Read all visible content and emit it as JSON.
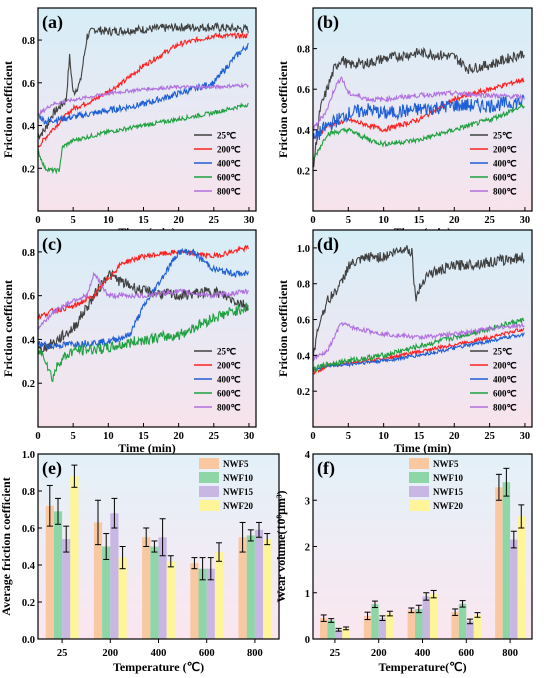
{
  "chart_data": [
    {
      "panel_label": "(a)",
      "type": "line",
      "xlabel": "Time (min)",
      "ylabel": "Friction coefficient",
      "xlim": [
        0,
        31
      ],
      "ylim": [
        0.0,
        0.95
      ],
      "xticks": [
        "0",
        "5",
        "10",
        "15",
        "20",
        "25",
        "30"
      ],
      "yticks": [
        "0.2",
        "0.4",
        "0.6",
        "0.8"
      ],
      "legend_position": "bottom-right",
      "series": [
        {
          "name": "25℃",
          "color": "#404040",
          "noise": 0.02,
          "x": [
            0,
            1,
            2,
            4,
            4.5,
            5,
            6,
            7,
            8,
            10,
            15,
            20,
            25,
            30
          ],
          "y": [
            0.35,
            0.38,
            0.45,
            0.52,
            0.72,
            0.55,
            0.6,
            0.82,
            0.85,
            0.84,
            0.85,
            0.86,
            0.86,
            0.85
          ]
        },
        {
          "name": "200℃",
          "color": "#ff2020",
          "noise": 0.012,
          "x": [
            0,
            2,
            5,
            8,
            12,
            15,
            18,
            20,
            25,
            30
          ],
          "y": [
            0.3,
            0.38,
            0.48,
            0.52,
            0.6,
            0.68,
            0.74,
            0.78,
            0.82,
            0.82
          ]
        },
        {
          "name": "400℃",
          "color": "#1f5fd6",
          "noise": 0.015,
          "x": [
            0,
            1,
            5,
            10,
            15,
            20,
            25,
            28,
            30
          ],
          "y": [
            0.45,
            0.42,
            0.44,
            0.47,
            0.5,
            0.55,
            0.6,
            0.72,
            0.78
          ]
        },
        {
          "name": "600℃",
          "color": "#20a040",
          "noise": 0.01,
          "x": [
            0,
            1,
            2,
            3,
            3.5,
            5,
            10,
            15,
            20,
            25,
            30
          ],
          "y": [
            0.28,
            0.2,
            0.19,
            0.19,
            0.3,
            0.33,
            0.37,
            0.4,
            0.43,
            0.46,
            0.5
          ]
        },
        {
          "name": "800℃",
          "color": "#b070e0",
          "noise": 0.008,
          "x": [
            0,
            2,
            5,
            10,
            15,
            20,
            25,
            30
          ],
          "y": [
            0.45,
            0.5,
            0.52,
            0.55,
            0.57,
            0.58,
            0.58,
            0.59
          ]
        }
      ]
    },
    {
      "panel_label": "(b)",
      "type": "line",
      "xlabel": "Time (min)",
      "ylabel": "Friction coefficient",
      "xlim": [
        0,
        31
      ],
      "ylim": [
        0.0,
        1.0
      ],
      "xticks": [
        "0",
        "5",
        "10",
        "15",
        "20",
        "25",
        "30"
      ],
      "yticks": [
        "0.2",
        "0.4",
        "0.6",
        "0.8"
      ],
      "legend_position": "bottom-right",
      "series": [
        {
          "name": "25℃",
          "color": "#404040",
          "noise": 0.025,
          "x": [
            0,
            1,
            2,
            3,
            4,
            5,
            8,
            10,
            15,
            20,
            22,
            25,
            30
          ],
          "y": [
            0.2,
            0.5,
            0.6,
            0.7,
            0.75,
            0.72,
            0.73,
            0.75,
            0.78,
            0.76,
            0.7,
            0.72,
            0.78
          ]
        },
        {
          "name": "200℃",
          "color": "#ff2020",
          "noise": 0.012,
          "x": [
            0,
            2,
            5,
            8,
            10,
            15,
            20,
            25,
            30
          ],
          "y": [
            0.35,
            0.42,
            0.45,
            0.42,
            0.4,
            0.45,
            0.55,
            0.6,
            0.65
          ]
        },
        {
          "name": "400℃",
          "color": "#1f5fd6",
          "noise": 0.035,
          "x": [
            0,
            2,
            5,
            8,
            10,
            15,
            20,
            25,
            30
          ],
          "y": [
            0.35,
            0.42,
            0.48,
            0.5,
            0.48,
            0.5,
            0.52,
            0.52,
            0.54
          ]
        },
        {
          "name": "600℃",
          "color": "#20a040",
          "noise": 0.012,
          "x": [
            0,
            2,
            5,
            8,
            10,
            15,
            20,
            25,
            30
          ],
          "y": [
            0.25,
            0.38,
            0.4,
            0.35,
            0.33,
            0.35,
            0.4,
            0.45,
            0.52
          ]
        },
        {
          "name": "800℃",
          "color": "#b070e0",
          "noise": 0.012,
          "x": [
            0,
            2,
            3,
            4,
            5,
            8,
            10,
            15,
            20,
            25,
            30
          ],
          "y": [
            0.4,
            0.5,
            0.6,
            0.66,
            0.58,
            0.55,
            0.55,
            0.57,
            0.58,
            0.57,
            0.56
          ]
        }
      ]
    },
    {
      "panel_label": "(c)",
      "type": "line",
      "xlabel": "Time (min)",
      "ylabel": "Friction coefficient",
      "xlim": [
        0,
        31
      ],
      "ylim": [
        0.0,
        0.9
      ],
      "xticks": [
        "0",
        "5",
        "10",
        "15",
        "20",
        "25",
        "30"
      ],
      "yticks": [
        "0.2",
        "0.4",
        "0.6",
        "0.8"
      ],
      "legend_position": "bottom-right",
      "series": [
        {
          "name": "25℃",
          "color": "#404040",
          "noise": 0.025,
          "x": [
            0,
            2,
            5,
            8,
            10,
            12,
            15,
            20,
            25,
            30
          ],
          "y": [
            0.35,
            0.38,
            0.45,
            0.6,
            0.7,
            0.66,
            0.62,
            0.6,
            0.62,
            0.55
          ]
        },
        {
          "name": "200℃",
          "color": "#ff2020",
          "noise": 0.012,
          "x": [
            0,
            2,
            5,
            8,
            10,
            12,
            15,
            20,
            25,
            30
          ],
          "y": [
            0.5,
            0.53,
            0.55,
            0.6,
            0.68,
            0.75,
            0.78,
            0.8,
            0.78,
            0.82
          ]
        },
        {
          "name": "400℃",
          "color": "#1f5fd6",
          "noise": 0.015,
          "x": [
            0,
            2,
            5,
            10,
            13,
            15,
            18,
            20,
            22,
            25,
            28,
            30
          ],
          "y": [
            0.38,
            0.37,
            0.38,
            0.39,
            0.42,
            0.55,
            0.7,
            0.8,
            0.8,
            0.72,
            0.7,
            0.7
          ]
        },
        {
          "name": "600℃",
          "color": "#20a040",
          "noise": 0.025,
          "x": [
            0,
            1,
            2,
            3,
            5,
            10,
            15,
            20,
            25,
            30
          ],
          "y": [
            0.35,
            0.32,
            0.22,
            0.3,
            0.35,
            0.36,
            0.4,
            0.42,
            0.5,
            0.55
          ]
        },
        {
          "name": "800℃",
          "color": "#b070e0",
          "noise": 0.012,
          "x": [
            0,
            2,
            5,
            7,
            8,
            10,
            15,
            20,
            25,
            30
          ],
          "y": [
            0.45,
            0.52,
            0.58,
            0.6,
            0.7,
            0.6,
            0.6,
            0.62,
            0.6,
            0.62
          ]
        }
      ]
    },
    {
      "panel_label": "(d)",
      "type": "line",
      "xlabel": "Time (min)",
      "ylabel": "Friction coefficient",
      "xlim": [
        0,
        31
      ],
      "ylim": [
        0.0,
        1.1
      ],
      "xticks": [
        "0",
        "5",
        "10",
        "15",
        "20",
        "25",
        "30"
      ],
      "yticks": [
        "0.2",
        "0.4",
        "0.6",
        "0.8",
        "1.0"
      ],
      "legend_position": "bottom-right",
      "series": [
        {
          "name": "25℃",
          "color": "#404040",
          "noise": 0.03,
          "x": [
            0,
            1,
            2,
            4,
            5,
            8,
            10,
            13,
            14,
            14.5,
            16,
            20,
            25,
            30
          ],
          "y": [
            0.4,
            0.6,
            0.7,
            0.8,
            0.9,
            0.95,
            0.95,
            1.0,
            0.98,
            0.72,
            0.85,
            0.9,
            0.92,
            0.95
          ]
        },
        {
          "name": "200℃",
          "color": "#ff2020",
          "noise": 0.01,
          "x": [
            0,
            2,
            5,
            10,
            15,
            20,
            25,
            30
          ],
          "y": [
            0.3,
            0.34,
            0.36,
            0.38,
            0.42,
            0.46,
            0.5,
            0.55
          ]
        },
        {
          "name": "400℃",
          "color": "#1f5fd6",
          "noise": 0.01,
          "x": [
            0,
            2,
            5,
            10,
            15,
            20,
            25,
            30
          ],
          "y": [
            0.32,
            0.34,
            0.35,
            0.37,
            0.4,
            0.44,
            0.48,
            0.52
          ]
        },
        {
          "name": "600℃",
          "color": "#20a040",
          "noise": 0.015,
          "x": [
            0,
            2,
            5,
            10,
            15,
            20,
            25,
            30
          ],
          "y": [
            0.32,
            0.35,
            0.37,
            0.4,
            0.45,
            0.5,
            0.55,
            0.6
          ]
        },
        {
          "name": "800℃",
          "color": "#b070e0",
          "noise": 0.012,
          "x": [
            0,
            1,
            2,
            3,
            4,
            6,
            10,
            15,
            20,
            25,
            30
          ],
          "y": [
            0.38,
            0.4,
            0.42,
            0.5,
            0.58,
            0.55,
            0.52,
            0.5,
            0.52,
            0.55,
            0.57
          ]
        }
      ]
    },
    {
      "panel_label": "(e)",
      "type": "bar",
      "xlabel": "Temperature (℃)",
      "ylabel": "Average friction coefficient",
      "ylim": [
        0.0,
        1.0
      ],
      "yticks": [
        "0.0",
        "0.2",
        "0.4",
        "0.6",
        "0.8",
        "1.0"
      ],
      "categories": [
        "25",
        "200",
        "400",
        "600",
        "800"
      ],
      "legend_position": "top-right",
      "series": [
        {
          "name": "NWF5",
          "color": "#f9c8a0",
          "values": [
            0.72,
            0.63,
            0.55,
            0.41,
            0.55
          ],
          "errors": [
            0.11,
            0.12,
            0.05,
            0.03,
            0.08
          ]
        },
        {
          "name": "NWF10",
          "color": "#8fd6a6",
          "values": [
            0.69,
            0.5,
            0.5,
            0.38,
            0.56
          ],
          "errors": [
            0.07,
            0.07,
            0.03,
            0.06,
            0.03
          ]
        },
        {
          "name": "NWF15",
          "color": "#c7b7e2",
          "values": [
            0.54,
            0.68,
            0.55,
            0.38,
            0.59
          ],
          "errors": [
            0.07,
            0.08,
            0.1,
            0.06,
            0.04
          ]
        },
        {
          "name": "NWF20",
          "color": "#fdf598",
          "values": [
            0.88,
            0.44,
            0.42,
            0.47,
            0.54
          ],
          "errors": [
            0.06,
            0.06,
            0.03,
            0.05,
            0.03
          ]
        }
      ]
    },
    {
      "panel_label": "(f)",
      "type": "bar",
      "xlabel": "Temperature(℃)",
      "ylabel": "Wear volume(10⁸μm³)",
      "ylim": [
        0,
        4
      ],
      "yticks": [
        "0",
        "1",
        "2",
        "3",
        "4"
      ],
      "categories": [
        "25",
        "200",
        "400",
        "600",
        "800"
      ],
      "legend_position": "top-left",
      "series": [
        {
          "name": "NWF5",
          "color": "#f9c8a0",
          "values": [
            0.45,
            0.5,
            0.62,
            0.58,
            3.28
          ],
          "errors": [
            0.07,
            0.08,
            0.05,
            0.07,
            0.28
          ]
        },
        {
          "name": "NWF10",
          "color": "#8fd6a6",
          "values": [
            0.4,
            0.75,
            0.65,
            0.76,
            3.39
          ],
          "errors": [
            0.04,
            0.07,
            0.08,
            0.07,
            0.3
          ]
        },
        {
          "name": "NWF15",
          "color": "#c7b7e2",
          "values": [
            0.2,
            0.45,
            0.92,
            0.38,
            2.15
          ],
          "errors": [
            0.03,
            0.05,
            0.08,
            0.05,
            0.18
          ]
        },
        {
          "name": "NWF20",
          "color": "#fdf598",
          "values": [
            0.23,
            0.55,
            0.97,
            0.52,
            2.65
          ],
          "errors": [
            0.03,
            0.05,
            0.08,
            0.05,
            0.25
          ]
        }
      ]
    }
  ]
}
